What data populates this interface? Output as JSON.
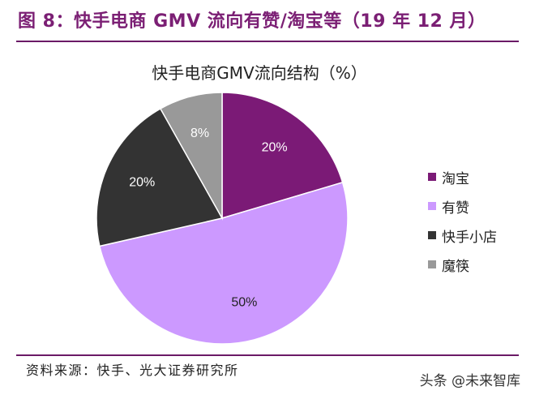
{
  "figure_title": "图 8：快手电商 GMV 流向有赞/淘宝等（19 年 12 月）",
  "source": "资料来源：快手、光大证券研究所",
  "watermark": "头条 @未来智库",
  "chart_data": {
    "type": "pie",
    "title": "快手电商GMV流向结构（%）",
    "categories": [
      "淘宝",
      "有赞",
      "快手小店",
      "魔筷"
    ],
    "values": [
      20,
      50,
      20,
      8
    ],
    "labels": [
      "20%",
      "50%",
      "20%",
      "8%"
    ],
    "colors": [
      "#7b1a76",
      "#cc99ff",
      "#333333",
      "#999999"
    ],
    "legend": "right",
    "start_angle_deg": 0,
    "direction": "clockwise"
  }
}
